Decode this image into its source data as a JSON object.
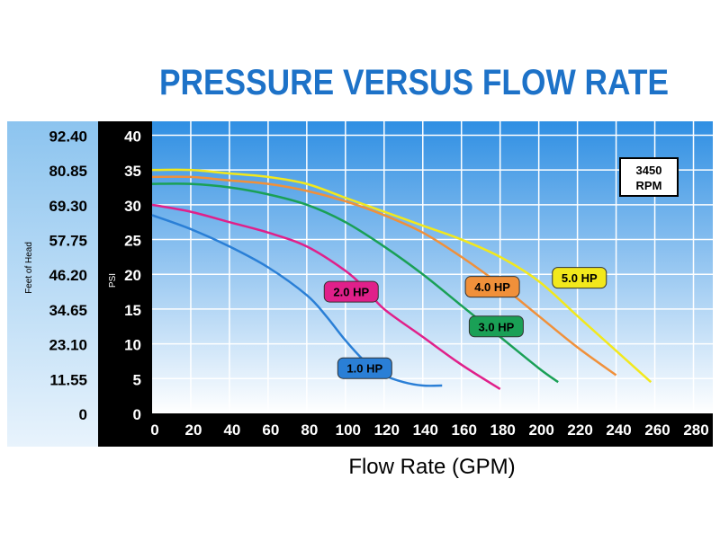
{
  "chart_data": {
    "type": "line",
    "title": "PRESSURE VERSUS FLOW RATE",
    "xlabel": "Flow Rate (GPM)",
    "ylabel": "PSI",
    "ylabel_secondary": "Feet of Head",
    "xlim": [
      0,
      290
    ],
    "ylim": [
      0,
      42
    ],
    "x_ticks": [
      0,
      20,
      40,
      60,
      80,
      100,
      120,
      140,
      160,
      180,
      200,
      220,
      240,
      260,
      280
    ],
    "y_ticks": [
      0,
      5,
      10,
      15,
      20,
      25,
      30,
      35,
      40
    ],
    "y_tick_labels": [
      "0",
      "5",
      "10",
      "15",
      "20",
      "25",
      "30",
      "35",
      "40"
    ],
    "feet_ticks": [
      0,
      11.55,
      23.1,
      34.65,
      46.2,
      57.75,
      69.3,
      80.85,
      92.4
    ],
    "feet_tick_labels": [
      "0",
      "11.55",
      "23.10",
      "34.65",
      "46.20",
      "57.75",
      "69.30",
      "80.85",
      "92.40"
    ],
    "grid": true,
    "annotation": [
      "3450",
      "RPM"
    ],
    "series": [
      {
        "name": "1.0 HP",
        "color": "#2a7fd6",
        "label_pos": [
          110,
          6.5
        ],
        "x": [
          0,
          20,
          40,
          60,
          80,
          90,
          100,
          110,
          120,
          130,
          140,
          150
        ],
        "y": [
          28.5,
          26.5,
          24,
          21,
          17,
          14,
          10.5,
          7.5,
          5.5,
          4.5,
          4,
          4
        ]
      },
      {
        "name": "2.0 HP",
        "color": "#e0208a",
        "label_pos": [
          103,
          17.5
        ],
        "x": [
          0,
          20,
          40,
          60,
          80,
          100,
          110,
          120,
          140,
          160,
          180
        ],
        "y": [
          30,
          29,
          27.5,
          26,
          24,
          20.5,
          18,
          15,
          11,
          7,
          3.5
        ]
      },
      {
        "name": "3.0 HP",
        "color": "#1aa056",
        "label_pos": [
          178,
          12.5
        ],
        "x": [
          0,
          20,
          40,
          60,
          80,
          100,
          120,
          140,
          160,
          180,
          200,
          210
        ],
        "y": [
          33,
          33,
          32.5,
          31.5,
          30,
          27.5,
          24,
          20,
          15.5,
          11,
          6.5,
          4.5
        ]
      },
      {
        "name": "4.0 HP",
        "color": "#f0903a",
        "label_pos": [
          176,
          18.2
        ],
        "x": [
          0,
          20,
          40,
          60,
          80,
          100,
          120,
          140,
          160,
          180,
          200,
          220,
          240
        ],
        "y": [
          34,
          34,
          33.5,
          33,
          32,
          30.5,
          28.5,
          26,
          22.5,
          18.5,
          14,
          9.5,
          5.5
        ]
      },
      {
        "name": "5.0 HP",
        "color": "#f2e81c",
        "label_pos": [
          221,
          19.5
        ],
        "x": [
          0,
          20,
          40,
          60,
          80,
          100,
          120,
          140,
          160,
          180,
          200,
          220,
          240,
          258
        ],
        "y": [
          35,
          35,
          34.5,
          34,
          33,
          31,
          29,
          27,
          25,
          22.5,
          19,
          14,
          9,
          4.5
        ]
      }
    ]
  }
}
